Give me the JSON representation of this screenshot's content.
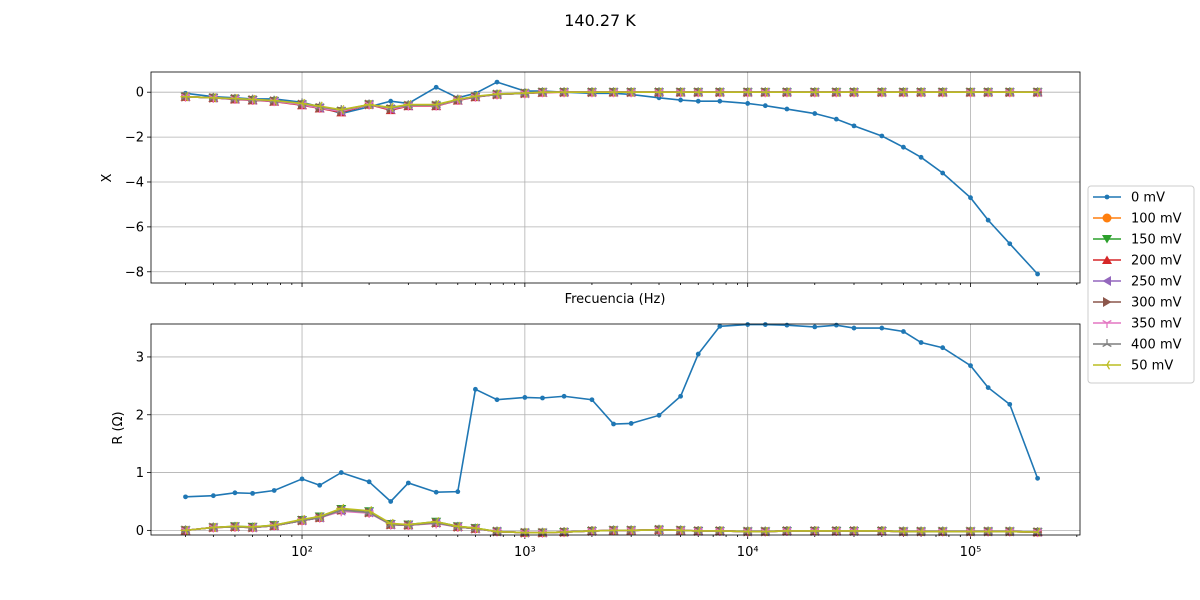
{
  "figure": {
    "title": "140.27 K"
  },
  "legend": {
    "placement": "right-outside",
    "entries": [
      {
        "label": "0 mV",
        "color": "#1f77b4",
        "marker": "point"
      },
      {
        "label": "100 mV",
        "color": "#ff7f0e",
        "marker": "circle"
      },
      {
        "label": "150 mV",
        "color": "#2ca02c",
        "marker": "triangle-down"
      },
      {
        "label": "200 mV",
        "color": "#d62728",
        "marker": "triangle-up"
      },
      {
        "label": "250 mV",
        "color": "#9467bd",
        "marker": "triangle-left"
      },
      {
        "label": "300 mV",
        "color": "#8c564b",
        "marker": "triangle-right"
      },
      {
        "label": "350 mV",
        "color": "#e377c2",
        "marker": "tri-down"
      },
      {
        "label": "400 mV",
        "color": "#7f7f7f",
        "marker": "tri-up"
      },
      {
        "label": "50 mV",
        "color": "#bcbd22",
        "marker": "tri-left"
      }
    ]
  },
  "chart_data": [
    {
      "type": "line",
      "panel": "top",
      "xlabel": "Frecuencia (Hz)",
      "ylabel": "X",
      "xscale": "log",
      "xlim": [
        21,
        310000
      ],
      "ylim": [
        -8.5,
        0.9
      ],
      "yticks": [
        "0",
        "−2",
        "−4",
        "−6",
        "−8"
      ],
      "yticks_values": [
        0,
        -2,
        -4,
        -6,
        -8
      ],
      "grid": true,
      "x": [
        30,
        40,
        50,
        60,
        75,
        100,
        120,
        150,
        200,
        250,
        300,
        400,
        500,
        600,
        750,
        1000,
        1200,
        1500,
        2000,
        2500,
        3000,
        4000,
        5000,
        6000,
        7500,
        10000,
        12000,
        15000,
        20000,
        25000,
        30000,
        40000,
        50000,
        60000,
        75000,
        100000,
        120000,
        150000,
        200000
      ],
      "series": [
        {
          "name": "0 mV",
          "values": [
            -0.05,
            -0.2,
            -0.25,
            -0.3,
            -0.3,
            -0.45,
            -0.65,
            -0.95,
            -0.65,
            -0.4,
            -0.5,
            0.22,
            -0.25,
            -0.05,
            0.45,
            0.05,
            0.05,
            0.0,
            -0.05,
            -0.05,
            -0.1,
            -0.25,
            -0.35,
            -0.4,
            -0.4,
            -0.5,
            -0.6,
            -0.75,
            -0.95,
            -1.2,
            -1.5,
            -1.95,
            -2.45,
            -2.9,
            -3.6,
            -4.7,
            -5.7,
            -6.75,
            -8.1
          ]
        },
        {
          "name": "100 mV",
          "values": [
            -0.2,
            -0.25,
            -0.3,
            -0.35,
            -0.4,
            -0.55,
            -0.7,
            -0.85,
            -0.55,
            -0.75,
            -0.6,
            -0.6,
            -0.35,
            -0.2,
            -0.1,
            -0.05,
            0.0,
            0.0,
            0.0,
            0.0,
            0.0,
            0.0,
            0.0,
            0.0,
            0.0,
            0.0,
            0.0,
            0.0,
            0.0,
            0.0,
            0.0,
            0.0,
            0.0,
            0.0,
            0.0,
            0.0,
            0.0,
            0.0,
            0.0
          ]
        },
        {
          "name": "150 mV",
          "values": [
            -0.2,
            -0.25,
            -0.3,
            -0.35,
            -0.4,
            -0.55,
            -0.7,
            -0.85,
            -0.55,
            -0.75,
            -0.6,
            -0.6,
            -0.35,
            -0.2,
            -0.1,
            -0.05,
            0.0,
            0.0,
            0.0,
            0.0,
            0.0,
            0.0,
            0.0,
            0.0,
            0.0,
            0.0,
            0.0,
            0.0,
            0.0,
            0.0,
            0.0,
            0.0,
            0.0,
            0.0,
            0.0,
            0.0,
            0.0,
            0.0,
            0.0
          ]
        },
        {
          "name": "200 mV",
          "values": [
            -0.2,
            -0.25,
            -0.32,
            -0.36,
            -0.42,
            -0.58,
            -0.72,
            -0.9,
            -0.55,
            -0.8,
            -0.62,
            -0.62,
            -0.37,
            -0.22,
            -0.1,
            -0.05,
            -0.02,
            0.0,
            0.0,
            0.0,
            0.0,
            0.0,
            0.0,
            0.0,
            0.0,
            0.0,
            0.0,
            0.0,
            0.0,
            0.0,
            0.0,
            0.0,
            0.0,
            0.0,
            0.0,
            0.0,
            0.0,
            0.0,
            0.0
          ]
        },
        {
          "name": "250 mV",
          "values": [
            -0.2,
            -0.25,
            -0.3,
            -0.35,
            -0.4,
            -0.55,
            -0.7,
            -0.85,
            -0.55,
            -0.75,
            -0.6,
            -0.6,
            -0.35,
            -0.2,
            -0.1,
            -0.05,
            0.0,
            0.0,
            0.0,
            0.0,
            0.0,
            0.0,
            0.0,
            0.0,
            0.0,
            0.0,
            0.0,
            0.0,
            0.0,
            0.0,
            0.0,
            0.0,
            0.0,
            0.0,
            0.0,
            0.0,
            0.0,
            0.0,
            0.0
          ]
        },
        {
          "name": "300 mV",
          "values": [
            -0.2,
            -0.25,
            -0.3,
            -0.35,
            -0.4,
            -0.55,
            -0.7,
            -0.85,
            -0.55,
            -0.75,
            -0.6,
            -0.6,
            -0.35,
            -0.2,
            -0.1,
            -0.05,
            0.0,
            0.0,
            0.0,
            0.0,
            0.0,
            0.0,
            0.0,
            0.0,
            0.0,
            0.0,
            0.0,
            0.0,
            0.0,
            0.0,
            0.0,
            0.0,
            0.0,
            0.0,
            0.0,
            0.0,
            0.0,
            0.0,
            0.0
          ]
        },
        {
          "name": "350 mV",
          "values": [
            -0.2,
            -0.25,
            -0.3,
            -0.35,
            -0.4,
            -0.55,
            -0.7,
            -0.85,
            -0.55,
            -0.75,
            -0.6,
            -0.6,
            -0.35,
            -0.2,
            -0.1,
            -0.05,
            0.0,
            0.0,
            0.0,
            0.0,
            0.0,
            0.0,
            0.0,
            0.0,
            0.0,
            0.0,
            0.0,
            0.0,
            0.0,
            0.0,
            0.0,
            0.0,
            0.0,
            0.0,
            0.0,
            0.0,
            0.0,
            0.0,
            0.0
          ]
        },
        {
          "name": "400 mV",
          "values": [
            -0.2,
            -0.25,
            -0.3,
            -0.33,
            -0.38,
            -0.5,
            -0.65,
            -0.8,
            -0.55,
            -0.7,
            -0.58,
            -0.58,
            -0.33,
            -0.2,
            -0.1,
            -0.05,
            0.0,
            0.0,
            0.0,
            0.0,
            0.0,
            0.0,
            0.0,
            0.0,
            0.0,
            0.0,
            0.0,
            0.0,
            0.0,
            0.0,
            0.0,
            0.0,
            0.0,
            0.0,
            0.0,
            0.0,
            0.0,
            0.0,
            0.0
          ]
        },
        {
          "name": "50 mV",
          "values": [
            -0.2,
            -0.25,
            -0.28,
            -0.32,
            -0.37,
            -0.5,
            -0.62,
            -0.78,
            -0.55,
            -0.68,
            -0.55,
            -0.55,
            -0.32,
            -0.18,
            -0.08,
            -0.04,
            0.0,
            0.0,
            0.0,
            0.0,
            0.0,
            0.0,
            0.0,
            0.0,
            0.0,
            0.0,
            0.0,
            0.0,
            0.0,
            0.0,
            0.0,
            0.0,
            0.0,
            0.0,
            0.0,
            0.0,
            0.0,
            0.0,
            0.0
          ]
        }
      ]
    },
    {
      "type": "line",
      "panel": "bottom",
      "xlabel": "",
      "ylabel": "R (Ω)",
      "xscale": "log",
      "xlim": [
        21,
        310000
      ],
      "ylim": [
        -0.08,
        3.57
      ],
      "xticks": [
        "10²",
        "10³",
        "10⁴",
        "10⁵"
      ],
      "xticks_values": [
        100,
        1000,
        10000,
        100000
      ],
      "yticks": [
        "0",
        "1",
        "2",
        "3"
      ],
      "yticks_values": [
        0,
        1,
        2,
        3
      ],
      "grid": true,
      "x": [
        30,
        40,
        50,
        60,
        75,
        100,
        120,
        150,
        200,
        250,
        300,
        400,
        500,
        600,
        750,
        1000,
        1200,
        1500,
        2000,
        2500,
        3000,
        4000,
        5000,
        6000,
        7500,
        10000,
        12000,
        15000,
        20000,
        25000,
        30000,
        40000,
        50000,
        60000,
        75000,
        100000,
        120000,
        150000,
        200000
      ],
      "series": [
        {
          "name": "0 mV",
          "values": [
            0.58,
            0.6,
            0.65,
            0.64,
            0.69,
            0.89,
            0.78,
            1.0,
            0.84,
            0.5,
            0.82,
            0.66,
            0.67,
            2.44,
            2.26,
            2.3,
            2.29,
            2.32,
            2.26,
            1.84,
            1.85,
            1.99,
            2.32,
            3.05,
            3.53,
            3.56,
            3.56,
            3.55,
            3.52,
            3.55,
            3.5,
            3.5,
            3.44,
            3.25,
            3.16,
            2.85,
            2.47,
            2.18,
            0.9
          ]
        },
        {
          "name": "100 mV",
          "values": [
            0.0,
            0.05,
            0.06,
            0.05,
            0.08,
            0.17,
            0.22,
            0.35,
            0.31,
            0.1,
            0.09,
            0.13,
            0.06,
            0.03,
            -0.02,
            -0.04,
            -0.04,
            -0.03,
            -0.01,
            0.0,
            0.0,
            0.01,
            0.0,
            -0.01,
            -0.01,
            -0.02,
            -0.02,
            -0.01,
            -0.01,
            -0.01,
            -0.01,
            -0.01,
            -0.02,
            -0.02,
            -0.02,
            -0.02,
            -0.02,
            -0.02,
            -0.03
          ]
        },
        {
          "name": "150 mV",
          "values": [
            0.0,
            0.05,
            0.07,
            0.06,
            0.09,
            0.18,
            0.24,
            0.37,
            0.33,
            0.11,
            0.1,
            0.15,
            0.07,
            0.04,
            -0.02,
            -0.04,
            -0.04,
            -0.03,
            -0.01,
            0.0,
            0.0,
            0.01,
            0.0,
            -0.01,
            -0.01,
            -0.02,
            -0.02,
            -0.01,
            -0.01,
            -0.01,
            -0.01,
            -0.01,
            -0.02,
            -0.02,
            -0.02,
            -0.02,
            -0.02,
            -0.02,
            -0.03
          ]
        },
        {
          "name": "200 mV",
          "values": [
            0.0,
            0.05,
            0.06,
            0.05,
            0.08,
            0.17,
            0.22,
            0.35,
            0.31,
            0.1,
            0.09,
            0.13,
            0.06,
            0.03,
            -0.02,
            -0.04,
            -0.04,
            -0.03,
            -0.01,
            0.0,
            0.0,
            0.01,
            0.0,
            -0.01,
            -0.01,
            -0.02,
            -0.02,
            -0.01,
            -0.01,
            -0.01,
            -0.01,
            -0.01,
            -0.02,
            -0.02,
            -0.02,
            -0.02,
            -0.02,
            -0.02,
            -0.03
          ]
        },
        {
          "name": "250 mV",
          "values": [
            0.0,
            0.05,
            0.06,
            0.05,
            0.08,
            0.17,
            0.22,
            0.34,
            0.31,
            0.1,
            0.09,
            0.13,
            0.06,
            0.03,
            -0.02,
            -0.04,
            -0.04,
            -0.03,
            -0.01,
            0.0,
            0.0,
            0.01,
            0.0,
            -0.01,
            -0.01,
            -0.02,
            -0.02,
            -0.01,
            -0.01,
            -0.01,
            -0.01,
            -0.01,
            -0.02,
            -0.02,
            -0.02,
            -0.02,
            -0.02,
            -0.02,
            -0.03
          ]
        },
        {
          "name": "300 mV",
          "values": [
            0.0,
            0.05,
            0.06,
            0.05,
            0.08,
            0.17,
            0.22,
            0.35,
            0.31,
            0.1,
            0.09,
            0.13,
            0.06,
            0.03,
            -0.02,
            -0.04,
            -0.04,
            -0.03,
            -0.01,
            0.0,
            0.0,
            0.01,
            0.0,
            -0.01,
            -0.01,
            -0.02,
            -0.02,
            -0.01,
            -0.01,
            -0.01,
            -0.01,
            -0.01,
            -0.02,
            -0.02,
            -0.02,
            -0.02,
            -0.02,
            -0.02,
            -0.03
          ]
        },
        {
          "name": "350 mV",
          "values": [
            0.0,
            0.05,
            0.06,
            0.05,
            0.08,
            0.17,
            0.22,
            0.33,
            0.3,
            0.1,
            0.09,
            0.12,
            0.06,
            0.03,
            -0.02,
            -0.04,
            -0.04,
            -0.03,
            -0.01,
            0.0,
            0.0,
            0.01,
            0.0,
            -0.01,
            -0.01,
            -0.02,
            -0.02,
            -0.01,
            -0.01,
            -0.01,
            -0.01,
            -0.01,
            -0.02,
            -0.02,
            -0.02,
            -0.02,
            -0.02,
            -0.02,
            -0.03
          ]
        },
        {
          "name": "400 mV",
          "values": [
            0.0,
            0.05,
            0.06,
            0.05,
            0.08,
            0.17,
            0.22,
            0.35,
            0.31,
            0.1,
            0.09,
            0.13,
            0.06,
            0.03,
            -0.02,
            -0.04,
            -0.04,
            -0.03,
            -0.01,
            0.0,
            0.0,
            0.01,
            0.0,
            -0.01,
            -0.01,
            -0.02,
            -0.02,
            -0.01,
            -0.01,
            -0.01,
            -0.01,
            -0.01,
            -0.02,
            -0.02,
            -0.02,
            -0.02,
            -0.02,
            -0.02,
            -0.03
          ]
        },
        {
          "name": "50 mV",
          "values": [
            0.0,
            0.05,
            0.07,
            0.06,
            0.09,
            0.19,
            0.24,
            0.38,
            0.34,
            0.12,
            0.1,
            0.15,
            0.07,
            0.04,
            -0.02,
            -0.04,
            -0.04,
            -0.03,
            -0.01,
            0.0,
            0.0,
            0.01,
            0.0,
            -0.01,
            -0.01,
            -0.02,
            -0.02,
            -0.01,
            -0.01,
            -0.01,
            -0.01,
            -0.01,
            -0.02,
            -0.02,
            -0.02,
            -0.02,
            -0.02,
            -0.02,
            -0.03
          ]
        }
      ]
    }
  ]
}
